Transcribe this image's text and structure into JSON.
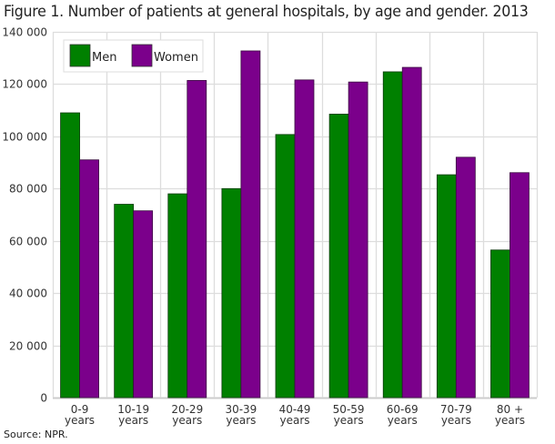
{
  "chart_data": {
    "type": "bar",
    "title": "Figure 1. Number of patients at general hospitals, by age and gender. 2013",
    "xlabel": "",
    "ylabel": "",
    "ylim": [
      0,
      140000
    ],
    "yticks": [
      0,
      20000,
      40000,
      60000,
      80000,
      100000,
      120000,
      140000
    ],
    "ytick_labels": [
      "0",
      "20 000",
      "40 000",
      "60 000",
      "80 000",
      "100 000",
      "120 000",
      "140 000"
    ],
    "categories": [
      [
        "0-9",
        "years"
      ],
      [
        "10-19",
        "years"
      ],
      [
        "20-29",
        "years"
      ],
      [
        "30-39",
        "years"
      ],
      [
        "40-49",
        "years"
      ],
      [
        "50-59",
        "years"
      ],
      [
        "60-69",
        "years"
      ],
      [
        "70-79",
        "years"
      ],
      [
        "80 +",
        "years"
      ]
    ],
    "series": [
      {
        "name": "Men",
        "color": "#008000",
        "values": [
          109000,
          74000,
          78000,
          80000,
          100700,
          108500,
          124700,
          85300,
          56500
        ]
      },
      {
        "name": "Women",
        "color": "#7b008b",
        "values": [
          91000,
          71500,
          121400,
          132700,
          121600,
          120800,
          126400,
          92000,
          86100
        ]
      }
    ],
    "grid": true,
    "legend_position": "top-left",
    "source": "Source: NPR."
  }
}
